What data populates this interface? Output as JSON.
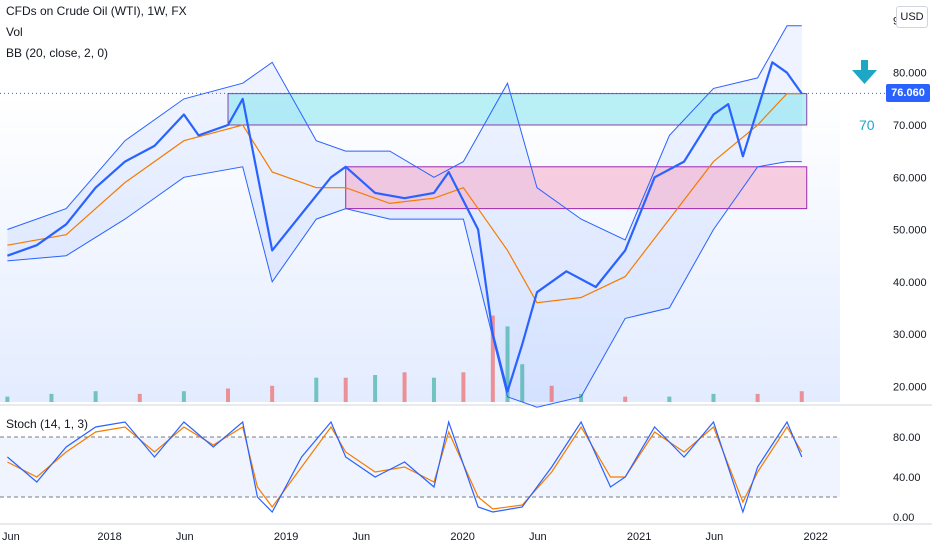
{
  "legend": {
    "symbol": "CFDs on Crude Oil (WTI), 1W, FX",
    "vol": "Vol",
    "bb": "BB (20, close, 2, 0)",
    "stoch": "Stoch (14, 1, 3)"
  },
  "currency_button": "USD",
  "last_price": "76.060",
  "annotation": "70",
  "colors": {
    "price": "#2962ff",
    "basis": "#f57c00",
    "bands": "#2962ff",
    "resistance_zone": "#7fe3ee",
    "support_zone": "#f6a8c6",
    "vol_up": "#26a69a",
    "vol_down": "#ef5350",
    "stoch_k": "#2962ff",
    "stoch_d": "#f57c00",
    "arrow": "#1ea7c5"
  },
  "chart_data": [
    {
      "type": "line",
      "title": "",
      "x_axis_labels": [
        "Jun",
        "2018",
        "Jun",
        "2019",
        "Jun",
        "2020",
        "Jun",
        "2021",
        "Jun",
        "2022"
      ],
      "y_axis_labels": [
        "20.000",
        "30.000",
        "40.000",
        "50.000",
        "60.000",
        "70.000",
        "80.000",
        "90.000"
      ],
      "ylim": [
        17,
        92
      ],
      "x_start": "2017-06",
      "x_end": "2021-12",
      "series": [
        {
          "name": "CFDs on Crude Oil (WTI)",
          "x": [
            "2017-06",
            "2017-08",
            "2017-10",
            "2017-12",
            "2018-02",
            "2018-04",
            "2018-06",
            "2018-07",
            "2018-09",
            "2018-10",
            "2018-12",
            "2019-02",
            "2019-04",
            "2019-05",
            "2019-07",
            "2019-09",
            "2019-11",
            "2019-12",
            "2020-02",
            "2020-03",
            "2020-04",
            "2020-05",
            "2020-06",
            "2020-08",
            "2020-10",
            "2020-12",
            "2021-02",
            "2021-04",
            "2021-06",
            "2021-07",
            "2021-08",
            "2021-10",
            "2021-11",
            "2021-12"
          ],
          "values": [
            45,
            47,
            51,
            58,
            63,
            66,
            72,
            68,
            70,
            75,
            46,
            53,
            60,
            62,
            57,
            56,
            57,
            61,
            50,
            30,
            19,
            28,
            38,
            42,
            39,
            46,
            60,
            63,
            72,
            74,
            64,
            82,
            80,
            76
          ]
        },
        {
          "name": "BB upper",
          "x": [
            "2017-06",
            "2017-10",
            "2018-02",
            "2018-06",
            "2018-10",
            "2018-12",
            "2019-03",
            "2019-05",
            "2019-08",
            "2019-11",
            "2020-01",
            "2020-04",
            "2020-06",
            "2020-09",
            "2020-12",
            "2021-03",
            "2021-06",
            "2021-09",
            "2021-11",
            "2021-12"
          ],
          "values": [
            50,
            54,
            67,
            75,
            78,
            82,
            67,
            65,
            65,
            60,
            63,
            78,
            58,
            52,
            48,
            68,
            77,
            79,
            89,
            89
          ]
        },
        {
          "name": "BB lower",
          "x": [
            "2017-06",
            "2017-10",
            "2018-02",
            "2018-06",
            "2018-10",
            "2018-12",
            "2019-03",
            "2019-05",
            "2019-08",
            "2019-11",
            "2020-01",
            "2020-04",
            "2020-06",
            "2020-09",
            "2020-12",
            "2021-03",
            "2021-06",
            "2021-09",
            "2021-11",
            "2021-12"
          ],
          "values": [
            44,
            45,
            52,
            60,
            62,
            40,
            52,
            54,
            52,
            52,
            52,
            18,
            16,
            18,
            33,
            35,
            50,
            62,
            63,
            63
          ]
        },
        {
          "name": "BB basis",
          "x": [
            "2017-06",
            "2017-10",
            "2018-02",
            "2018-06",
            "2018-10",
            "2018-12",
            "2019-03",
            "2019-05",
            "2019-08",
            "2019-11",
            "2020-01",
            "2020-04",
            "2020-06",
            "2020-09",
            "2020-12",
            "2021-03",
            "2021-06",
            "2021-09",
            "2021-11",
            "2021-12"
          ],
          "values": [
            47,
            49,
            59,
            67,
            70,
            61,
            58,
            58,
            55,
            56,
            58,
            46,
            36,
            37,
            41,
            52,
            63,
            70,
            76,
            76
          ]
        }
      ],
      "zones": [
        {
          "from": "2018-09",
          "to": "2021-12",
          "low": 70,
          "high": 76
        },
        {
          "from": "2019-05",
          "to": "2021-12",
          "low": 54,
          "high": 62
        }
      ]
    },
    {
      "type": "bar",
      "title": "Vol",
      "x": [
        "2017-06",
        "2017-09",
        "2017-12",
        "2018-03",
        "2018-06",
        "2018-09",
        "2018-12",
        "2019-03",
        "2019-05",
        "2019-07",
        "2019-09",
        "2019-11",
        "2020-01",
        "2020-03",
        "2020-04",
        "2020-05",
        "2020-07",
        "2020-09",
        "2020-12",
        "2021-03",
        "2021-06",
        "2021-09",
        "2021-12"
      ],
      "values": [
        2,
        3,
        4,
        3,
        4,
        5,
        6,
        9,
        9,
        10,
        11,
        9,
        11,
        32,
        28,
        14,
        6,
        3,
        2,
        2,
        3,
        3,
        4
      ],
      "direction": [
        "up",
        "up",
        "up",
        "down",
        "up",
        "down",
        "down",
        "up",
        "down",
        "up",
        "down",
        "up",
        "down",
        "down",
        "up",
        "up",
        "down",
        "up",
        "down",
        "up",
        "up",
        "down",
        "down"
      ]
    },
    {
      "type": "line",
      "title": "Stoch (14, 1, 3)",
      "y_axis_labels": [
        "0.00",
        "40.00",
        "80.00"
      ],
      "ylim": [
        -5,
        105
      ],
      "levels": [
        20,
        80
      ],
      "series": [
        {
          "name": "%K",
          "x": [
            "2017-06",
            "2017-08",
            "2017-10",
            "2017-12",
            "2018-02",
            "2018-04",
            "2018-06",
            "2018-08",
            "2018-10",
            "2018-11",
            "2018-12",
            "2019-02",
            "2019-04",
            "2019-05",
            "2019-07",
            "2019-09",
            "2019-11",
            "2019-12",
            "2020-02",
            "2020-03",
            "2020-05",
            "2020-07",
            "2020-09",
            "2020-11",
            "2020-12",
            "2021-02",
            "2021-04",
            "2021-06",
            "2021-08",
            "2021-09",
            "2021-11",
            "2021-12"
          ],
          "values": [
            60,
            35,
            70,
            90,
            95,
            60,
            95,
            70,
            95,
            20,
            5,
            60,
            95,
            60,
            40,
            55,
            30,
            95,
            10,
            5,
            10,
            50,
            95,
            30,
            40,
            90,
            60,
            95,
            5,
            50,
            95,
            60
          ]
        },
        {
          "name": "%D",
          "x": [
            "2017-06",
            "2017-08",
            "2017-10",
            "2017-12",
            "2018-02",
            "2018-04",
            "2018-06",
            "2018-08",
            "2018-10",
            "2018-11",
            "2018-12",
            "2019-02",
            "2019-04",
            "2019-05",
            "2019-07",
            "2019-09",
            "2019-11",
            "2019-12",
            "2020-02",
            "2020-03",
            "2020-05",
            "2020-07",
            "2020-09",
            "2020-11",
            "2020-12",
            "2021-02",
            "2021-04",
            "2021-06",
            "2021-08",
            "2021-09",
            "2021-11",
            "2021-12"
          ],
          "values": [
            55,
            40,
            65,
            85,
            90,
            65,
            90,
            72,
            90,
            30,
            10,
            50,
            90,
            65,
            45,
            50,
            35,
            85,
            20,
            8,
            12,
            45,
            90,
            40,
            40,
            85,
            65,
            90,
            15,
            45,
            90,
            65
          ]
        }
      ]
    }
  ]
}
